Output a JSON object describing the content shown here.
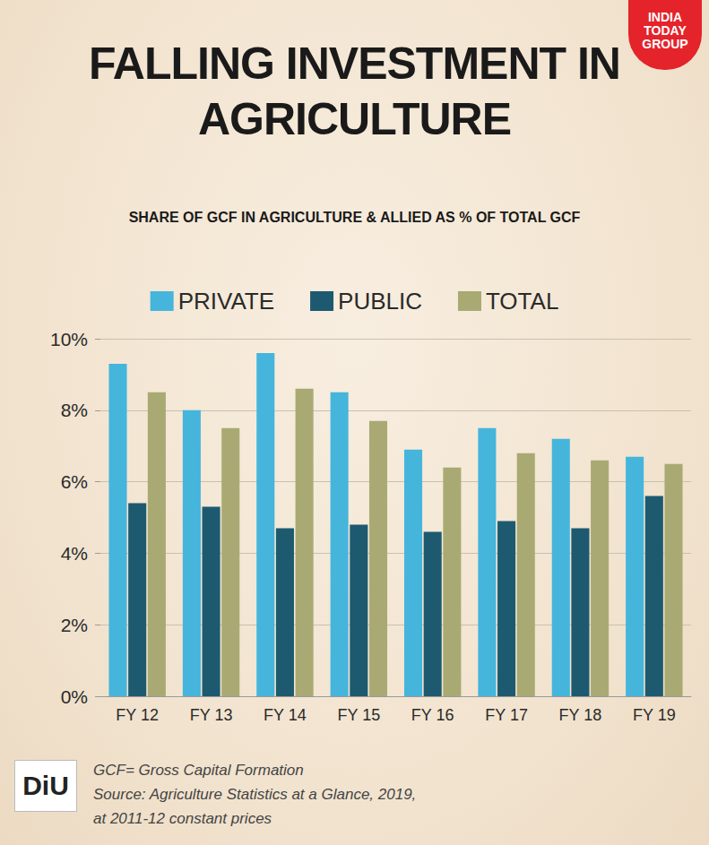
{
  "chart_data": {
    "type": "bar",
    "title": "FALLING INVESTMENT IN AGRICULTURE",
    "subtitle": "SHARE OF GCF IN AGRICULTURE & ALLIED AS % OF TOTAL GCF",
    "categories": [
      "FY 12",
      "FY 13",
      "FY 14",
      "FY 15",
      "FY 16",
      "FY 17",
      "FY 18",
      "FY 19"
    ],
    "series": [
      {
        "name": "PRIVATE",
        "color": "#45b5dc",
        "values": [
          9.3,
          8.0,
          9.6,
          8.5,
          6.9,
          7.5,
          7.2,
          6.7
        ]
      },
      {
        "name": "PUBLIC",
        "color": "#1d5a70",
        "values": [
          5.4,
          5.3,
          4.7,
          4.8,
          4.6,
          4.9,
          4.7,
          5.6
        ]
      },
      {
        "name": "TOTAL",
        "color": "#a9aa73",
        "values": [
          8.5,
          7.5,
          8.6,
          7.7,
          6.4,
          6.8,
          6.6,
          6.5
        ]
      }
    ],
    "ylim": [
      0,
      10
    ],
    "yticks": [
      {
        "value": 0,
        "label": "0%"
      },
      {
        "value": 2,
        "label": "2%"
      },
      {
        "value": 4,
        "label": "4%"
      },
      {
        "value": 6,
        "label": "6%"
      },
      {
        "value": 8,
        "label": "8%"
      },
      {
        "value": 10,
        "label": "10%"
      }
    ],
    "grid": true,
    "legend": "top",
    "annotations": [
      "GCF= Gross Capital Formation",
      "Source: Agriculture Statistics at a Glance, 2019,",
      "at 2011-12 constant prices"
    ],
    "brand": [
      "INDIA",
      "TODAY",
      "GROUP"
    ],
    "logo": "DiU"
  }
}
